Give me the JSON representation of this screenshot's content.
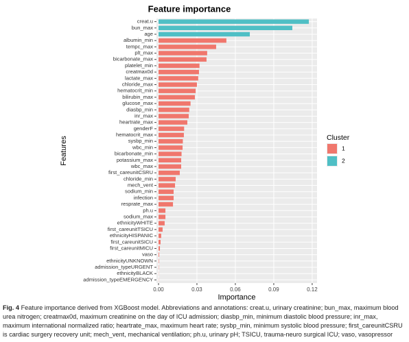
{
  "chart_data": {
    "type": "barh",
    "title": "Feature importance",
    "x_label": "Importance",
    "y_label": "Features",
    "legend_title": "Cluster",
    "legend_position": "right",
    "grid": true,
    "categories": [
      "creat.u",
      "bun_max",
      "age",
      "albumin_min",
      "tempc_max",
      "plt_max",
      "bicarbonate_max",
      "platelet_min",
      "creatmax0d",
      "lactate_max",
      "chloride_max",
      "hematocrit_min",
      "bilirubin_max",
      "glucose_max",
      "diasbp_min",
      "inr_max",
      "heartrate_max",
      "genderF",
      "hematocrit_max",
      "sysbp_min",
      "wbc_min",
      "bicarbonate_min",
      "potassium_max",
      "wbc_max",
      "first_careunitCSRU",
      "chloride_min",
      "mech_vent",
      "sodium_min",
      "infection",
      "resprate_max",
      "ph.u",
      "sodium_max",
      "ethnicityWHITE",
      "first_careunitTSICU",
      "ethnicityHISPANIC",
      "first_careunitSICU",
      "first_careunitMICU",
      "vaso",
      "ethnicityUNKNOWN",
      "admission_typeURGENT",
      "ethnicityBLACK",
      "admission_typeEMERGENCY"
    ],
    "series": [
      {
        "name": "1",
        "color": "#f0776d",
        "values": [
          null,
          null,
          null,
          0.053,
          0.045,
          0.038,
          0.0375,
          0.032,
          0.0316,
          0.031,
          0.03,
          0.029,
          0.0284,
          0.025,
          0.024,
          0.0236,
          0.0225,
          0.02,
          0.0198,
          0.019,
          0.0188,
          0.018,
          0.0177,
          0.0177,
          0.0166,
          0.0134,
          0.0129,
          0.0118,
          0.0118,
          0.0113,
          0.0054,
          0.0054,
          0.0048,
          0.0032,
          0.0021,
          0.0016,
          0.0011,
          0.0005,
          0.0003,
          0.0002,
          0.0001,
          0.0001
        ]
      },
      {
        "name": "2",
        "color": "#4fbfc5",
        "values": [
          0.1174,
          0.1045,
          0.0713,
          null,
          null,
          null,
          null,
          null,
          null,
          null,
          null,
          null,
          null,
          null,
          null,
          null,
          null,
          null,
          null,
          null,
          null,
          null,
          null,
          null,
          null,
          null,
          null,
          null,
          null,
          null,
          null,
          null,
          null,
          null,
          null,
          null,
          null,
          null,
          null,
          null,
          null,
          null
        ]
      }
    ],
    "xlim": [
      -0.0016,
      0.1238
    ],
    "xticks": [
      {
        "value": 0,
        "label": "0.00"
      },
      0.03,
      0.06,
      0.09,
      0.12
    ]
  },
  "caption": {
    "label": "Fig. 4",
    "text": "Feature importance derived from XGBoost model. Abbreviations and annotations: creat.u, urinary creatinine; bun_max, maximum blood urea nitrogen; creatmax0d, maximum creatinine on the day of ICU admission; diasbp_min, minimum diastolic blood pressure; inr_max, maximum international normalized ratio; heartrate_max, maximum heart rate; sysbp_min, minimum systolic blood pressure; first_careunitCSRU is cardiac surgery recovery unit; mech_vent, mechanical ventilation; ph.u, urinary pH; TSICU, trauma-neuro surgical ICU; vaso, vasopressor"
  }
}
